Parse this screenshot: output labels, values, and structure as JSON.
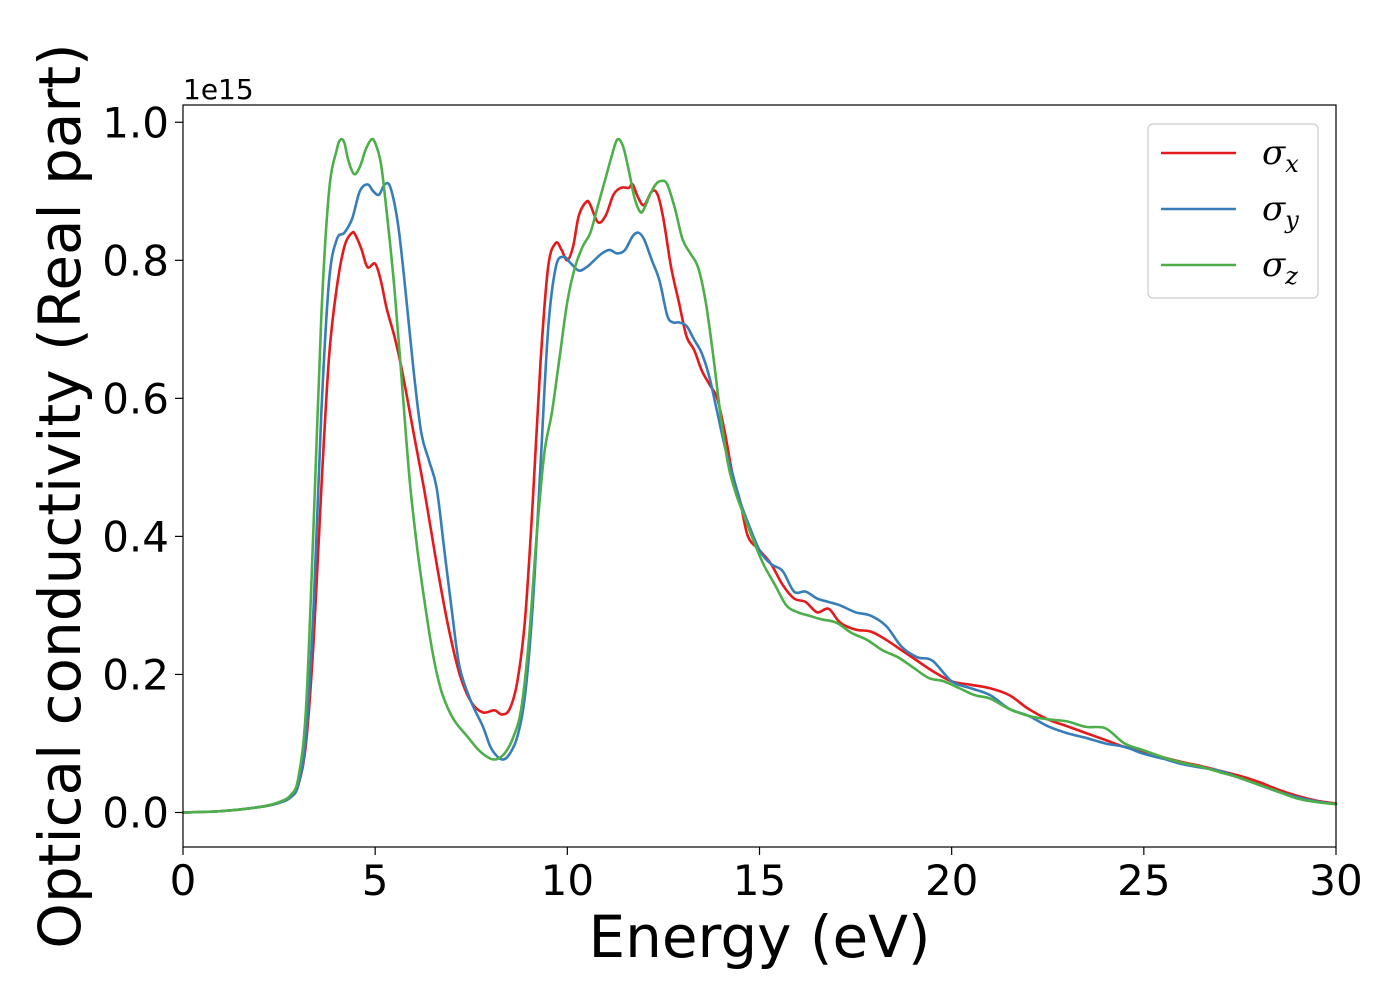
{
  "chart_data": {
    "type": "line",
    "xlabel": "Energy (eV)",
    "ylabel": "Optical conductivity (Real part)",
    "y_offset_label": "1e15",
    "xlim": [
      0,
      30
    ],
    "ylim": [
      -0.05,
      1.025
    ],
    "x_ticks": [
      0,
      5,
      10,
      15,
      20,
      25,
      30
    ],
    "x_tick_labels": [
      "0",
      "5",
      "10",
      "15",
      "20",
      "25",
      "30"
    ],
    "y_ticks": [
      0.0,
      0.2,
      0.4,
      0.6,
      0.8,
      1.0
    ],
    "y_tick_labels": [
      "0.0",
      "0.2",
      "0.4",
      "0.6",
      "0.8",
      "1.0"
    ],
    "grid": false,
    "legend_position": "top-right",
    "series": [
      {
        "name": "σx",
        "symbol": "σ",
        "subscript": "x",
        "color": "#e41a1c",
        "x": [
          0,
          1,
          2,
          2.5,
          2.8,
          3.0,
          3.2,
          3.4,
          3.6,
          3.8,
          4.0,
          4.2,
          4.4,
          4.5,
          4.65,
          4.8,
          5.0,
          5.15,
          5.3,
          5.5,
          5.7,
          6.0,
          6.3,
          6.6,
          6.9,
          7.2,
          7.5,
          7.8,
          8.1,
          8.3,
          8.5,
          8.7,
          8.9,
          9.1,
          9.3,
          9.5,
          9.7,
          9.85,
          10.0,
          10.15,
          10.3,
          10.5,
          10.6,
          10.8,
          11.0,
          11.2,
          11.4,
          11.6,
          11.7,
          11.85,
          12.0,
          12.2,
          12.35,
          12.5,
          12.7,
          12.9,
          13.1,
          13.3,
          13.5,
          13.7,
          13.9,
          14.1,
          14.3,
          14.5,
          14.7,
          15.0,
          15.3,
          15.6,
          15.9,
          16.2,
          16.5,
          16.8,
          17.1,
          17.5,
          17.9,
          18.3,
          18.7,
          19.1,
          19.5,
          20.0,
          20.5,
          21.0,
          21.5,
          22.0,
          22.5,
          23.0,
          23.5,
          24.0,
          24.5,
          25.0,
          25.5,
          26.0,
          26.5,
          27.0,
          27.5,
          28.0,
          28.5,
          29.0,
          29.5,
          30.0
        ],
        "y": [
          0.0,
          0.002,
          0.008,
          0.014,
          0.022,
          0.04,
          0.1,
          0.25,
          0.47,
          0.66,
          0.76,
          0.82,
          0.84,
          0.835,
          0.815,
          0.79,
          0.795,
          0.77,
          0.73,
          0.69,
          0.64,
          0.55,
          0.46,
          0.36,
          0.27,
          0.2,
          0.16,
          0.145,
          0.148,
          0.142,
          0.15,
          0.19,
          0.28,
          0.45,
          0.65,
          0.79,
          0.825,
          0.815,
          0.8,
          0.82,
          0.865,
          0.885,
          0.88,
          0.855,
          0.865,
          0.895,
          0.905,
          0.905,
          0.91,
          0.89,
          0.88,
          0.9,
          0.895,
          0.86,
          0.79,
          0.74,
          0.69,
          0.67,
          0.64,
          0.62,
          0.6,
          0.55,
          0.49,
          0.45,
          0.4,
          0.38,
          0.36,
          0.33,
          0.31,
          0.305,
          0.29,
          0.295,
          0.275,
          0.265,
          0.262,
          0.25,
          0.235,
          0.22,
          0.205,
          0.19,
          0.185,
          0.18,
          0.17,
          0.15,
          0.135,
          0.125,
          0.115,
          0.105,
          0.095,
          0.088,
          0.08,
          0.073,
          0.067,
          0.06,
          0.053,
          0.044,
          0.033,
          0.024,
          0.017,
          0.013
        ]
      },
      {
        "name": "σy",
        "symbol": "σ",
        "subscript": "y",
        "color": "#377eb8",
        "x": [
          0,
          1,
          2,
          2.5,
          2.8,
          3.0,
          3.2,
          3.4,
          3.6,
          3.8,
          4.0,
          4.2,
          4.4,
          4.6,
          4.8,
          4.95,
          5.1,
          5.25,
          5.4,
          5.6,
          5.8,
          6.0,
          6.2,
          6.4,
          6.6,
          6.8,
          7.0,
          7.2,
          7.5,
          7.8,
          8.0,
          8.2,
          8.35,
          8.5,
          8.7,
          8.9,
          9.1,
          9.3,
          9.5,
          9.7,
          9.9,
          10.1,
          10.3,
          10.5,
          10.7,
          10.9,
          11.1,
          11.3,
          11.5,
          11.7,
          11.85,
          12.0,
          12.2,
          12.4,
          12.6,
          12.75,
          12.9,
          13.1,
          13.3,
          13.5,
          13.7,
          13.9,
          14.1,
          14.3,
          14.5,
          14.7,
          15.0,
          15.3,
          15.6,
          15.9,
          16.2,
          16.5,
          16.8,
          17.1,
          17.5,
          17.9,
          18.3,
          18.7,
          19.1,
          19.5,
          20.0,
          20.5,
          21.0,
          21.5,
          22.0,
          22.5,
          23.0,
          23.5,
          24.0,
          24.5,
          25.0,
          25.5,
          26.0,
          26.5,
          27.0,
          27.5,
          28.0,
          28.5,
          29.0,
          29.5,
          30.0
        ],
        "y": [
          0.0,
          0.002,
          0.008,
          0.014,
          0.022,
          0.04,
          0.11,
          0.3,
          0.58,
          0.77,
          0.83,
          0.84,
          0.86,
          0.9,
          0.91,
          0.9,
          0.895,
          0.91,
          0.905,
          0.85,
          0.75,
          0.64,
          0.55,
          0.51,
          0.47,
          0.38,
          0.29,
          0.21,
          0.16,
          0.125,
          0.095,
          0.08,
          0.077,
          0.085,
          0.11,
          0.17,
          0.3,
          0.5,
          0.7,
          0.79,
          0.805,
          0.795,
          0.785,
          0.79,
          0.8,
          0.81,
          0.815,
          0.81,
          0.815,
          0.835,
          0.84,
          0.83,
          0.8,
          0.77,
          0.72,
          0.71,
          0.71,
          0.705,
          0.685,
          0.665,
          0.63,
          0.58,
          0.53,
          0.49,
          0.45,
          0.42,
          0.38,
          0.36,
          0.35,
          0.32,
          0.32,
          0.31,
          0.305,
          0.3,
          0.29,
          0.285,
          0.27,
          0.24,
          0.225,
          0.22,
          0.19,
          0.18,
          0.17,
          0.15,
          0.14,
          0.125,
          0.115,
          0.108,
          0.1,
          0.095,
          0.085,
          0.078,
          0.07,
          0.065,
          0.06,
          0.05,
          0.04,
          0.03,
          0.022,
          0.016,
          0.012
        ]
      },
      {
        "name": "σz",
        "symbol": "σ",
        "subscript": "z",
        "color": "#4daf4a",
        "x": [
          0,
          1,
          2,
          2.5,
          2.8,
          3.0,
          3.2,
          3.4,
          3.6,
          3.8,
          4.0,
          4.1,
          4.2,
          4.3,
          4.45,
          4.6,
          4.75,
          4.9,
          5.0,
          5.15,
          5.3,
          5.5,
          5.7,
          5.9,
          6.1,
          6.3,
          6.5,
          6.7,
          6.9,
          7.1,
          7.4,
          7.7,
          8.0,
          8.2,
          8.4,
          8.6,
          8.8,
          9.0,
          9.2,
          9.4,
          9.6,
          9.8,
          10.0,
          10.2,
          10.4,
          10.6,
          10.8,
          11.0,
          11.15,
          11.3,
          11.45,
          11.6,
          11.75,
          11.9,
          12.0,
          12.15,
          12.3,
          12.45,
          12.6,
          12.8,
          13.0,
          13.2,
          13.4,
          13.6,
          13.8,
          14.0,
          14.2,
          14.4,
          14.6,
          14.8,
          15.1,
          15.4,
          15.7,
          16.0,
          16.3,
          16.6,
          17.0,
          17.4,
          17.8,
          18.2,
          18.6,
          19.0,
          19.4,
          19.8,
          20.2,
          20.6,
          21.0,
          21.5,
          22.0,
          22.5,
          23.0,
          23.5,
          24.0,
          24.5,
          25.0,
          25.5,
          26.0,
          26.5,
          27.0,
          27.5,
          28.0,
          28.5,
          29.0,
          29.5,
          30.0
        ],
        "y": [
          0.0,
          0.002,
          0.008,
          0.015,
          0.025,
          0.05,
          0.15,
          0.42,
          0.72,
          0.9,
          0.96,
          0.975,
          0.97,
          0.945,
          0.925,
          0.935,
          0.96,
          0.975,
          0.97,
          0.94,
          0.87,
          0.76,
          0.62,
          0.48,
          0.38,
          0.3,
          0.23,
          0.18,
          0.15,
          0.13,
          0.11,
          0.09,
          0.078,
          0.078,
          0.088,
          0.11,
          0.15,
          0.25,
          0.4,
          0.52,
          0.58,
          0.66,
          0.74,
          0.79,
          0.82,
          0.84,
          0.88,
          0.92,
          0.95,
          0.975,
          0.965,
          0.93,
          0.89,
          0.87,
          0.875,
          0.895,
          0.91,
          0.915,
          0.91,
          0.875,
          0.83,
          0.81,
          0.79,
          0.74,
          0.66,
          0.57,
          0.5,
          0.46,
          0.43,
          0.4,
          0.36,
          0.33,
          0.3,
          0.29,
          0.285,
          0.28,
          0.275,
          0.26,
          0.25,
          0.235,
          0.225,
          0.21,
          0.195,
          0.19,
          0.18,
          0.17,
          0.165,
          0.15,
          0.14,
          0.135,
          0.132,
          0.124,
          0.122,
          0.1,
          0.09,
          0.08,
          0.072,
          0.066,
          0.058,
          0.05,
          0.04,
          0.03,
          0.02,
          0.015,
          0.012
        ]
      }
    ]
  }
}
